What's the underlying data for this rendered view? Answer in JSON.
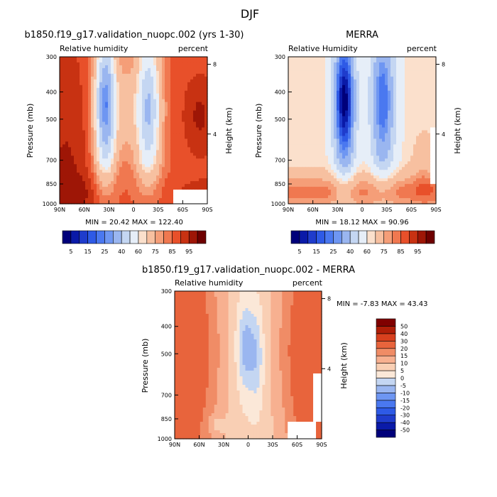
{
  "figure_title": "DJF",
  "chart_data": [
    {
      "type": "contour",
      "name": "model",
      "title": "b1850.f19_g17.validation_nuopc.002 (yrs 1-30)",
      "subtitle_left": "Relative humidity",
      "subtitle_right": "percent",
      "ylabel": "Pressure (mb)",
      "ylabel_right": "Height (km)",
      "x_ticks": [
        "90N",
        "60N",
        "30N",
        "0",
        "30S",
        "60S",
        "90S"
      ],
      "y_ticks": [
        "300",
        "400",
        "500",
        "700",
        "850",
        "1000"
      ],
      "y_right_ticks": [
        "8",
        "4"
      ],
      "stats_text": "MIN =   20.42   MAX =  122.40",
      "min": 20.42,
      "max": 122.4,
      "colorbar": {
        "levels": [
          5,
          10,
          15,
          20,
          25,
          30,
          40,
          50,
          60,
          65,
          75,
          80,
          85,
          90,
          95
        ],
        "labels": [
          "5",
          "15",
          "25",
          "40",
          "60",
          "75",
          "85",
          "95"
        ],
        "colors": [
          "#00007a",
          "#0a1aa8",
          "#1f3ccc",
          "#2e5ae6",
          "#4a78f0",
          "#6e96f2",
          "#9ab6f0",
          "#c4d6f2",
          "#e6eef8",
          "#fbe0cc",
          "#f7c0a0",
          "#f59e78",
          "#f07850",
          "#e8502a",
          "#c83212",
          "#9e1606",
          "#6e0000"
        ]
      }
    },
    {
      "type": "contour",
      "name": "obs",
      "title": "MERRA",
      "subtitle_left": "Relative Humidity",
      "subtitle_right": "percent",
      "ylabel": "Pressure (mb)",
      "ylabel_right": "Height (km)",
      "x_ticks": [
        "90N",
        "60N",
        "30N",
        "0",
        "30S",
        "60S",
        "90S"
      ],
      "y_ticks": [
        "300",
        "400",
        "500",
        "700",
        "850",
        "1000"
      ],
      "y_right_ticks": [
        "8",
        "4"
      ],
      "stats_text": "MIN =   18.12   MAX =   90.96",
      "min": 18.12,
      "max": 90.96,
      "colorbar": {
        "levels": [
          5,
          10,
          15,
          20,
          25,
          30,
          40,
          50,
          60,
          65,
          75,
          80,
          85,
          90,
          95
        ],
        "labels": [
          "5",
          "15",
          "25",
          "40",
          "60",
          "75",
          "85",
          "95"
        ],
        "colors": [
          "#00007a",
          "#0a1aa8",
          "#1f3ccc",
          "#2e5ae6",
          "#4a78f0",
          "#6e96f2",
          "#9ab6f0",
          "#c4d6f2",
          "#e6eef8",
          "#fbe0cc",
          "#f7c0a0",
          "#f59e78",
          "#f07850",
          "#e8502a",
          "#c83212",
          "#9e1606",
          "#6e0000"
        ]
      }
    },
    {
      "type": "contour",
      "name": "diff",
      "title": "b1850.f19_g17.validation_nuopc.002 - MERRA",
      "subtitle_left": "Relative humidity",
      "subtitle_right": "percent",
      "ylabel": "Pressure (mb)",
      "ylabel_right": "Height (km)",
      "x_ticks": [
        "90N",
        "60N",
        "30N",
        "0",
        "30S",
        "60S",
        "90S"
      ],
      "y_ticks": [
        "300",
        "400",
        "500",
        "700",
        "850",
        "1000"
      ],
      "y_right_ticks": [
        "8",
        "4"
      ],
      "stats_text": "MIN =  -7.83   MAX =  43.43",
      "min": -7.83,
      "max": 43.43,
      "colorbar": {
        "levels": [
          -50,
          -40,
          -30,
          -20,
          -15,
          -10,
          -5,
          0,
          5,
          10,
          15,
          20,
          30,
          40,
          50
        ],
        "labels": [
          "-50",
          "-40",
          "-30",
          "-20",
          "-15",
          "-10",
          "-5",
          "0",
          "5",
          "10",
          "15",
          "20",
          "30",
          "40",
          "50"
        ],
        "colors": [
          "#00007a",
          "#0a1aa8",
          "#1f3ccc",
          "#2e5ae6",
          "#4a78f0",
          "#6e96f2",
          "#9ab6f0",
          "#c4d6f2",
          "#fbe8d8",
          "#f9cfb4",
          "#f7b090",
          "#f08c66",
          "#e8643c",
          "#d8401e",
          "#b01e08",
          "#800000"
        ]
      }
    }
  ]
}
